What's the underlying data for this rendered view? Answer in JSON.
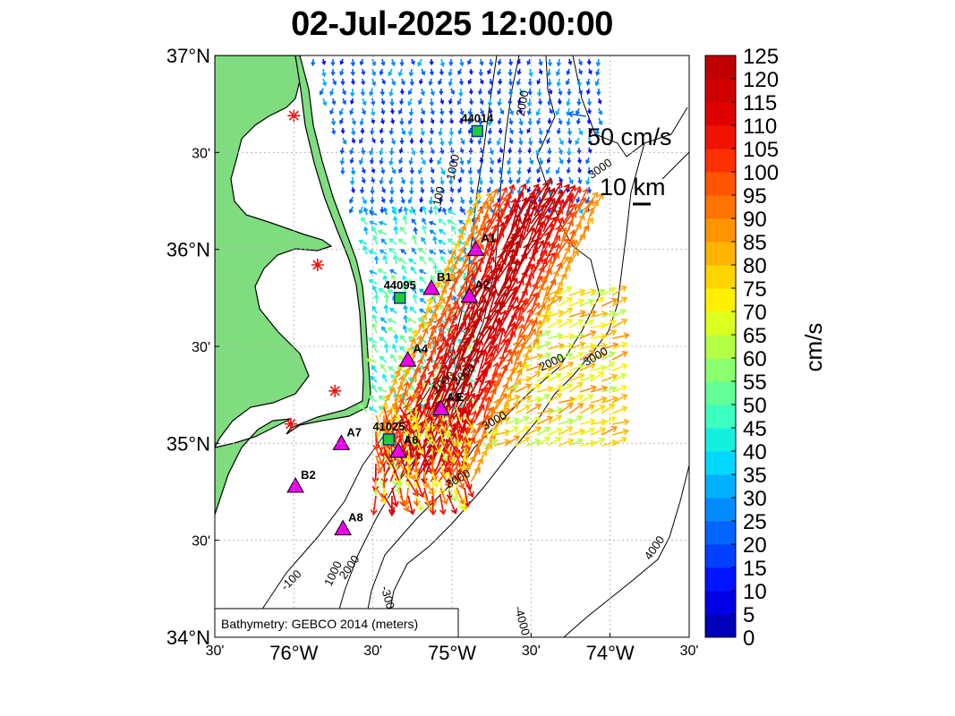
{
  "title": "02-Jul-2025 12:00:00",
  "map": {
    "lon_range": [
      -76.5,
      -73.5
    ],
    "lat_range": [
      34.0,
      37.0
    ],
    "lat_ticks": [
      {
        "value": 37.0,
        "label": "37°N",
        "major": true
      },
      {
        "value": 36.5,
        "label": "30'",
        "major": false
      },
      {
        "value": 36.0,
        "label": "36°N",
        "major": true
      },
      {
        "value": 35.5,
        "label": "30'",
        "major": false
      },
      {
        "value": 35.0,
        "label": "35°N",
        "major": true
      },
      {
        "value": 34.5,
        "label": "30'",
        "major": false
      },
      {
        "value": 34.0,
        "label": "34°N",
        "major": true
      }
    ],
    "lon_ticks": [
      {
        "value": -76.5,
        "label": "30'",
        "major": false
      },
      {
        "value": -76.0,
        "label": "76°W",
        "major": true
      },
      {
        "value": -75.5,
        "label": "30'",
        "major": false
      },
      {
        "value": -75.0,
        "label": "75°W",
        "major": true
      },
      {
        "value": -74.5,
        "label": "30'",
        "major": false
      },
      {
        "value": -74.0,
        "label": "74°W",
        "major": true
      },
      {
        "value": -73.5,
        "label": "30'",
        "major": false
      }
    ],
    "land_color": "#7fdd7f",
    "bathymetry_note": "Bathymetry: GEBCO 2014 (meters)",
    "contour_labels": [
      {
        "text": "100",
        "lon": -75.06,
        "lat": 36.27,
        "rotate": -78
      },
      {
        "text": "1000",
        "lon": -74.97,
        "lat": 36.42,
        "rotate": -78
      },
      {
        "text": "2000",
        "lon": -74.53,
        "lat": 36.75,
        "rotate": -80
      },
      {
        "text": "2000",
        "lon": -74.36,
        "lat": 35.4,
        "rotate": -25
      },
      {
        "text": "1000",
        "lon": -75.04,
        "lat": 35.3,
        "rotate": -40
      },
      {
        "text": "3000",
        "lon": -74.91,
        "lat": 35.34,
        "rotate": -40
      },
      {
        "text": "3000",
        "lon": -74.72,
        "lat": 35.1,
        "rotate": -30
      },
      {
        "text": "3000",
        "lon": -74.08,
        "lat": 35.43,
        "rotate": -30
      },
      {
        "text": "3000",
        "lon": -74.05,
        "lat": 36.4,
        "rotate": -35
      },
      {
        "text": "3000",
        "lon": -74.95,
        "lat": 34.8,
        "rotate": -30
      },
      {
        "text": "-100",
        "lon": -76.0,
        "lat": 34.28,
        "rotate": -45
      },
      {
        "text": "1000",
        "lon": -75.73,
        "lat": 34.32,
        "rotate": -65
      },
      {
        "text": "2000",
        "lon": -75.63,
        "lat": 34.35,
        "rotate": -55
      },
      {
        "text": "-300",
        "lon": -75.43,
        "lat": 34.2,
        "rotate": 75
      },
      {
        "text": "4000",
        "lon": -73.7,
        "lat": 34.45,
        "rotate": -55
      },
      {
        "text": "-4000",
        "lon": -74.58,
        "lat": 34.08,
        "rotate": 75
      }
    ],
    "stations": [
      {
        "name": "44014",
        "type": "buoy",
        "lon": -74.84,
        "lat": 36.61
      },
      {
        "name": "44095",
        "type": "buoy",
        "lon": -75.33,
        "lat": 35.75
      },
      {
        "name": "41025",
        "type": "buoy",
        "lon": -75.4,
        "lat": 35.02
      },
      {
        "name": "A1",
        "type": "site",
        "lon": -74.85,
        "lat": 36.0
      },
      {
        "name": "B1",
        "type": "site",
        "lon": -75.13,
        "lat": 35.8
      },
      {
        "name": "A2",
        "type": "site",
        "lon": -74.89,
        "lat": 35.76
      },
      {
        "name": "A4",
        "type": "site",
        "lon": -75.28,
        "lat": 35.43
      },
      {
        "name": "A5",
        "type": "site",
        "lon": -75.07,
        "lat": 35.18
      },
      {
        "name": "A6",
        "type": "site",
        "lon": -75.34,
        "lat": 34.96
      },
      {
        "name": "A7",
        "type": "site",
        "lon": -75.7,
        "lat": 35.0
      },
      {
        "name": "B2",
        "type": "site",
        "lon": -75.99,
        "lat": 34.78
      },
      {
        "name": "A8",
        "type": "site",
        "lon": -75.69,
        "lat": 34.56
      },
      {
        "name": "E",
        "type": "site-small",
        "lon": -75.0,
        "lat": 35.2
      }
    ],
    "radar_sites": [
      {
        "lon": -76.0,
        "lat": 36.69
      },
      {
        "lon": -75.85,
        "lat": 35.92
      },
      {
        "lon": -75.74,
        "lat": 35.27
      },
      {
        "lon": -76.02,
        "lat": 35.1
      }
    ],
    "scale": {
      "velocity_label": "50 cm/s",
      "distance_label": "10 km"
    }
  },
  "colorbar": {
    "label": "cm/s",
    "min": 0,
    "max": 125,
    "ticks": [
      "125",
      "120",
      "115",
      "110",
      "105",
      "100",
      "95",
      "90",
      "85",
      "80",
      "75",
      "70",
      "65",
      "60",
      "55",
      "50",
      "45",
      "40",
      "35",
      "30",
      "25",
      "20",
      "15",
      "10",
      "5",
      "0"
    ],
    "colors": [
      "#0000b8",
      "#0000e6",
      "#0014ff",
      "#0040ff",
      "#0064ff",
      "#008cff",
      "#00b0ff",
      "#00d8ff",
      "#14f0e0",
      "#3cffc0",
      "#64ff96",
      "#8cff6e",
      "#b4ff46",
      "#dcff1e",
      "#fff000",
      "#ffd400",
      "#ffb400",
      "#ff9400",
      "#ff7400",
      "#ff5400",
      "#ff3000",
      "#f01400",
      "#e00000",
      "#d00000",
      "#c00000"
    ]
  }
}
